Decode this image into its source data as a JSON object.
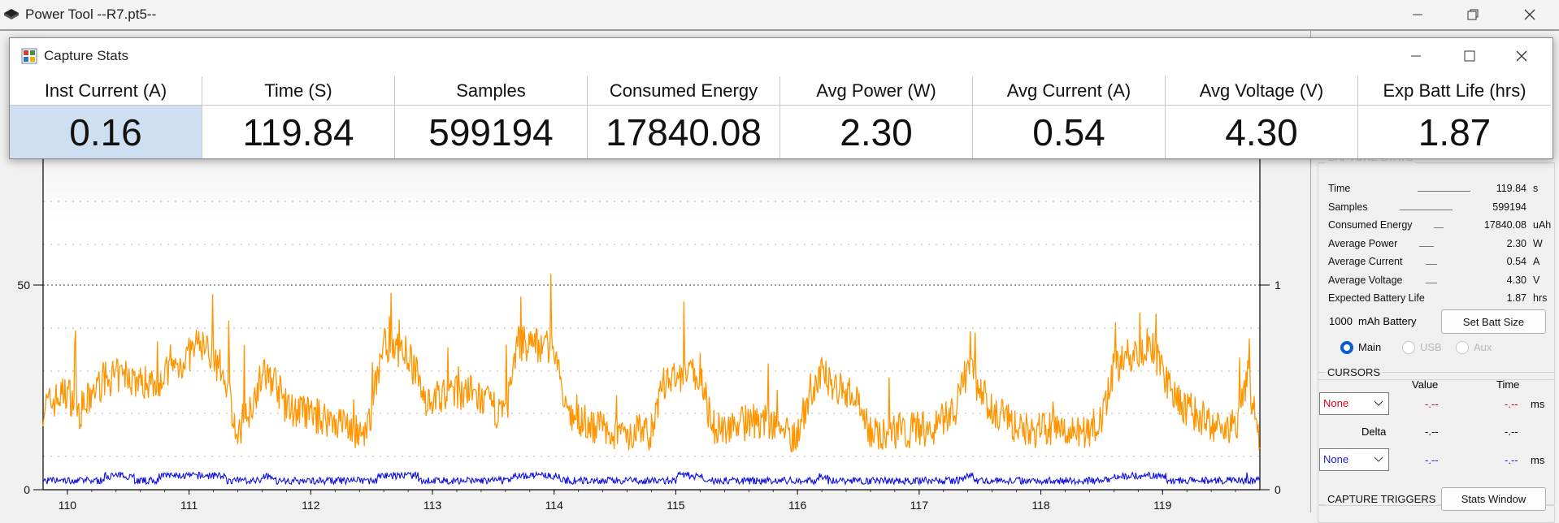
{
  "main_window": {
    "title": "Power Tool --R7.pt5--"
  },
  "stats_window": {
    "title": "Capture Stats",
    "columns": [
      {
        "header": "Inst Current (A)",
        "value": "0.16"
      },
      {
        "header": "Time (S)",
        "value": "119.84"
      },
      {
        "header": "Samples",
        "value": "599194"
      },
      {
        "header": "Consumed Energy",
        "value": "17840.08"
      },
      {
        "header": "Avg Power (W)",
        "value": "2.30"
      },
      {
        "header": "Avg Current (A)",
        "value": "0.54"
      },
      {
        "header": "Avg Voltage (V)",
        "value": "4.30"
      },
      {
        "header": "Exp Batt Life (hrs)",
        "value": "1.87"
      }
    ]
  },
  "panel": {
    "capture_stats_title": "CAPTURE STATS",
    "stats": [
      {
        "label": "Time",
        "value": "119.84",
        "unit": "s"
      },
      {
        "label": "Samples",
        "value": "599194",
        "unit": ""
      },
      {
        "label": "Consumed Energy",
        "value": "17840.08",
        "unit": "uAh"
      },
      {
        "label": "Average Power",
        "value": "2.30",
        "unit": "W"
      },
      {
        "label": "Average Current",
        "value": "0.54",
        "unit": "A"
      },
      {
        "label": "Average Voltage",
        "value": "4.30",
        "unit": "V"
      },
      {
        "label": "Expected Battery Life",
        "value": "1.87",
        "unit": "hrs"
      }
    ],
    "battery_capacity": "1000",
    "battery_label": "mAh Battery",
    "set_batt_size_label": "Set Batt Size",
    "channels": [
      {
        "label": "Main",
        "selected": true
      },
      {
        "label": "USB",
        "selected": false
      },
      {
        "label": "Aux",
        "selected": false
      }
    ],
    "cursors": {
      "title": "CURSORS",
      "value_header": "Value",
      "time_header": "Time",
      "cursor1": "None",
      "cursor1_value": "-.--",
      "cursor1_time": "-.--",
      "cursor1_unit": "ms",
      "delta_label": "Delta",
      "delta_value": "-.--",
      "delta_time": "-.--",
      "cursor2": "None",
      "cursor2_value": "-.--",
      "cursor2_time": "-.--",
      "cursor2_unit": "ms"
    },
    "triggers_title": "CAPTURE TRIGGERS",
    "stats_window_label": "Stats Window"
  },
  "chart_data": {
    "type": "line",
    "x_ticks": [
      "110",
      "111",
      "112",
      "113",
      "114",
      "115",
      "116",
      "117",
      "118",
      "119"
    ],
    "xlim": [
      109.8,
      119.8
    ],
    "left_ticks": [
      "0",
      "50"
    ],
    "left_ylim": [
      0,
      100
    ],
    "right_ticks": [
      "0",
      "1"
    ],
    "right_ylim": [
      0,
      2
    ],
    "grid": true,
    "colors": {
      "power": "#ff9500",
      "current": "#1010e0"
    }
  }
}
